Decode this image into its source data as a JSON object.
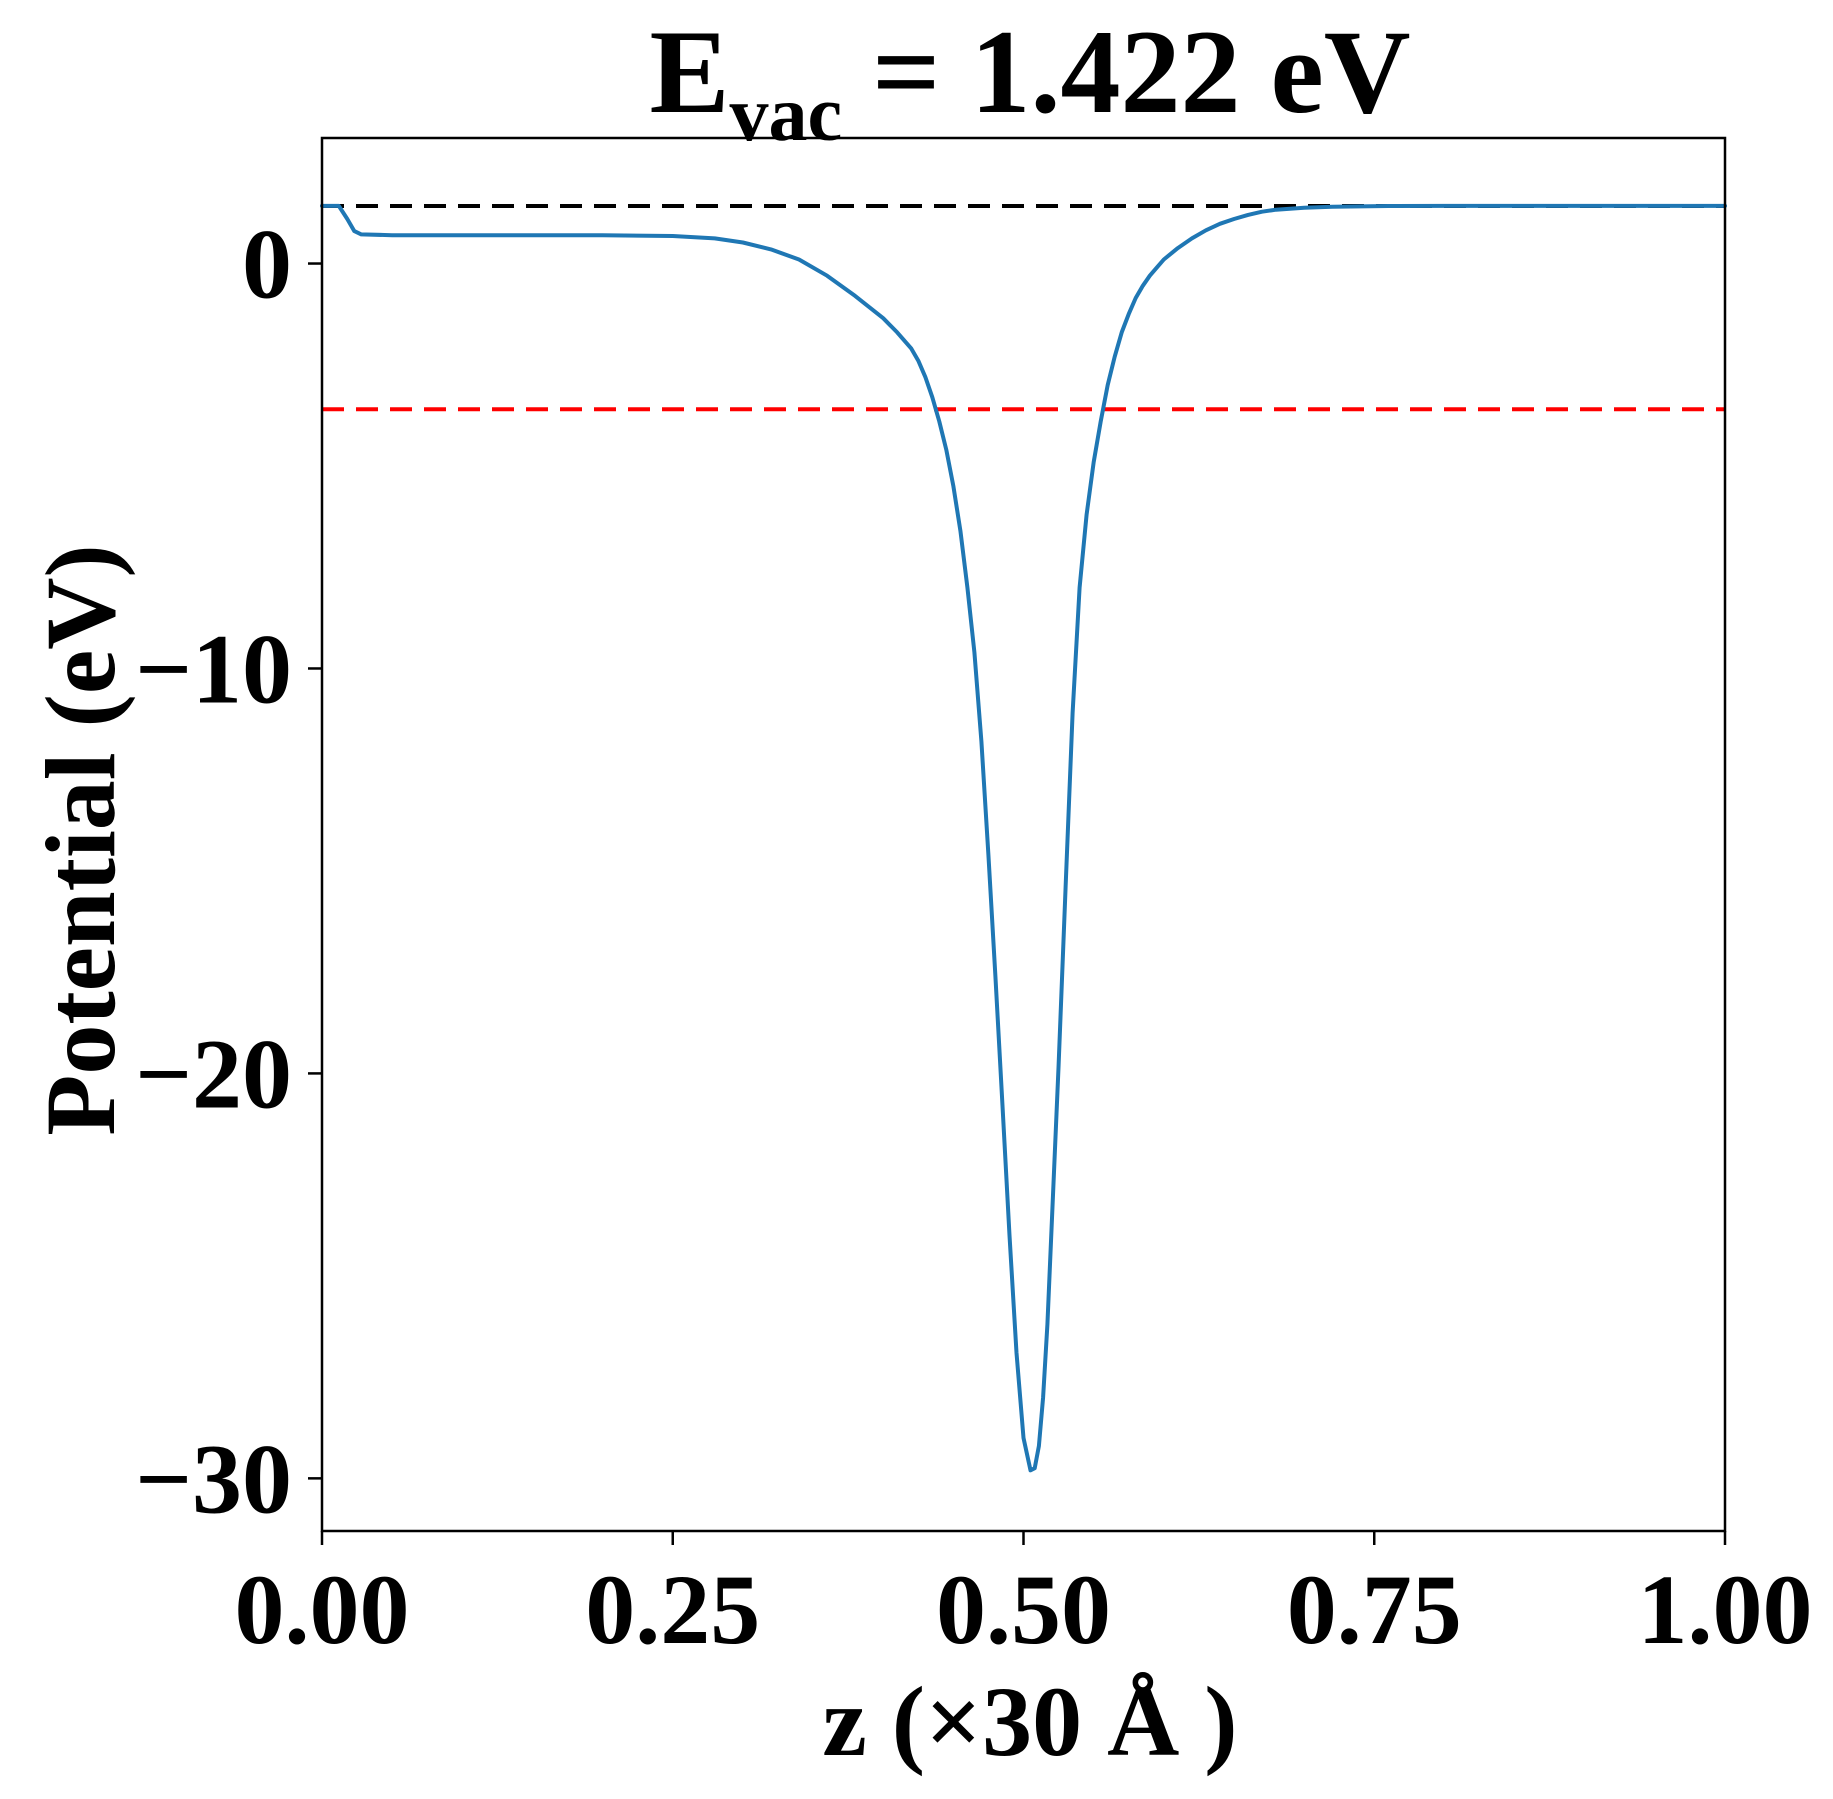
{
  "chart_data": {
    "type": "line",
    "title": {
      "symbol": "E",
      "subscript": "vac",
      "rest": " = 1.422 eV"
    },
    "xlabel": "z (×30 Å )",
    "ylabel": "Potential (eV)",
    "xlim": [
      0.0,
      1.0
    ],
    "ylim": [
      -31.3,
      3.1
    ],
    "xticks": [
      0.0,
      0.25,
      0.5,
      0.75,
      1.0
    ],
    "xtick_labels": [
      "0.00",
      "0.25",
      "0.50",
      "0.75",
      "1.00"
    ],
    "yticks": [
      0,
      -10,
      -20,
      -30
    ],
    "ytick_labels": [
      "0",
      "−10",
      "−20",
      "−30"
    ],
    "grid": false,
    "reference_lines": [
      {
        "y": 1.422,
        "color": "#000000",
        "style": "dashed"
      },
      {
        "y": -3.6,
        "color": "#ff0000",
        "style": "dashed"
      }
    ],
    "series": [
      {
        "color": "#1f77b4",
        "x": [
          0.0,
          0.012,
          0.018,
          0.023,
          0.028,
          0.05,
          0.1,
          0.15,
          0.2,
          0.25,
          0.28,
          0.3,
          0.32,
          0.34,
          0.36,
          0.38,
          0.4,
          0.41,
          0.42,
          0.425,
          0.43,
          0.435,
          0.44,
          0.445,
          0.45,
          0.455,
          0.46,
          0.465,
          0.47,
          0.475,
          0.48,
          0.485,
          0.49,
          0.495,
          0.5,
          0.505,
          0.508,
          0.511,
          0.514,
          0.517,
          0.52,
          0.525,
          0.53,
          0.535,
          0.54,
          0.545,
          0.55,
          0.555,
          0.56,
          0.565,
          0.57,
          0.575,
          0.58,
          0.585,
          0.59,
          0.595,
          0.6,
          0.61,
          0.62,
          0.63,
          0.64,
          0.65,
          0.66,
          0.67,
          0.68,
          0.7,
          0.72,
          0.74,
          0.76,
          0.8,
          0.9,
          1.0
        ],
        "y": [
          1.422,
          1.422,
          1.1,
          0.8,
          0.72,
          0.7,
          0.7,
          0.7,
          0.7,
          0.68,
          0.62,
          0.52,
          0.35,
          0.1,
          -0.3,
          -0.8,
          -1.35,
          -1.7,
          -2.1,
          -2.4,
          -2.8,
          -3.3,
          -3.9,
          -4.6,
          -5.5,
          -6.6,
          -8.0,
          -9.6,
          -11.8,
          -14.6,
          -17.6,
          -20.8,
          -24.0,
          -26.9,
          -29.0,
          -29.8,
          -29.75,
          -29.2,
          -28.0,
          -26.2,
          -23.8,
          -19.8,
          -15.4,
          -11.1,
          -8.0,
          -6.2,
          -4.9,
          -3.9,
          -3.0,
          -2.3,
          -1.7,
          -1.25,
          -0.85,
          -0.55,
          -0.3,
          -0.1,
          0.1,
          0.38,
          0.62,
          0.82,
          0.98,
          1.1,
          1.2,
          1.28,
          1.33,
          1.38,
          1.4,
          1.41,
          1.42,
          1.422,
          1.422,
          1.422
        ]
      }
    ]
  }
}
